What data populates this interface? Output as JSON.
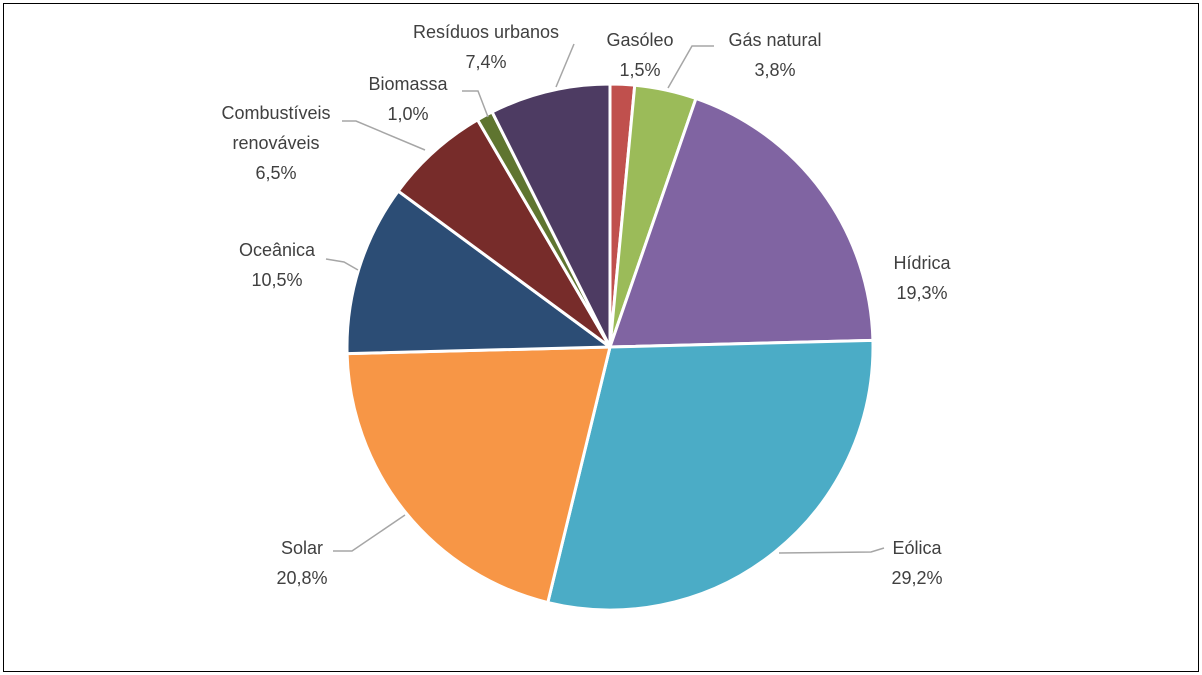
{
  "chart_data": {
    "type": "pie",
    "categories": [
      "Gasóleo",
      "Gás natural",
      "Hídrica",
      "Eólica",
      "Solar",
      "Oceânica",
      "Combustíveis renováveis",
      "Biomassa",
      "Resíduos urbanos"
    ],
    "values": [
      1.5,
      3.8,
      19.3,
      29.2,
      20.8,
      10.5,
      6.5,
      1.0,
      7.4
    ],
    "data_labels": [
      "1,5%",
      "3,8%",
      "19,3%",
      "29,2%",
      "20,8%",
      "10,5%",
      "6,5%",
      "1,0%",
      "7,4%"
    ],
    "colors": [
      "#C0504D",
      "#9BBB59",
      "#8064A2",
      "#4BACC6",
      "#F79646",
      "#2C4D75",
      "#772C2A",
      "#5F7530",
      "#4D3B62"
    ]
  }
}
